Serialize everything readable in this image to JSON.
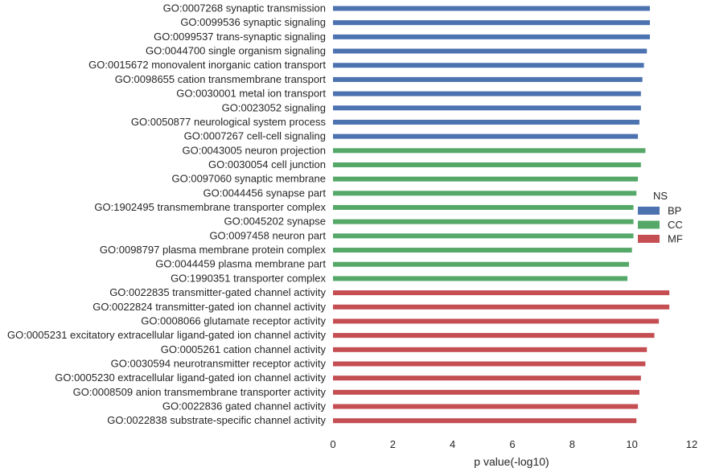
{
  "chart_data": {
    "type": "bar",
    "orientation": "horizontal",
    "xlabel": "p value(-log10)",
    "ylabel": "",
    "xlim": [
      0,
      12
    ],
    "xticks": [
      "0",
      "2",
      "4",
      "6",
      "8",
      "10",
      "12"
    ],
    "grid": false,
    "legend": {
      "title": "NS",
      "placement": "right",
      "entries": [
        {
          "name": "BP",
          "color": "#4c72b0"
        },
        {
          "name": "CC",
          "color": "#55a868"
        },
        {
          "name": "MF",
          "color": "#c44e52"
        }
      ]
    },
    "categories": [
      {
        "label": "GO:0007268 synaptic transmission",
        "value": 10.6,
        "ns": "BP"
      },
      {
        "label": "GO:0099536 synaptic signaling",
        "value": 10.6,
        "ns": "BP"
      },
      {
        "label": "GO:0099537 trans-synaptic signaling",
        "value": 10.6,
        "ns": "BP"
      },
      {
        "label": "GO:0044700 single organism signaling",
        "value": 10.5,
        "ns": "BP"
      },
      {
        "label": "GO:0015672 monovalent inorganic cation transport",
        "value": 10.4,
        "ns": "BP"
      },
      {
        "label": "GO:0098655 cation transmembrane transport",
        "value": 10.35,
        "ns": "BP"
      },
      {
        "label": "GO:0030001 metal ion transport",
        "value": 10.3,
        "ns": "BP"
      },
      {
        "label": "GO:0023052 signaling",
        "value": 10.3,
        "ns": "BP"
      },
      {
        "label": "GO:0050877 neurological system process",
        "value": 10.25,
        "ns": "BP"
      },
      {
        "label": "GO:0007267 cell-cell signaling",
        "value": 10.2,
        "ns": "BP"
      },
      {
        "label": "GO:0043005 neuron projection",
        "value": 10.45,
        "ns": "CC"
      },
      {
        "label": "GO:0030054 cell junction",
        "value": 10.3,
        "ns": "CC"
      },
      {
        "label": "GO:0097060 synaptic membrane",
        "value": 10.2,
        "ns": "CC"
      },
      {
        "label": "GO:0044456 synapse part",
        "value": 10.15,
        "ns": "CC"
      },
      {
        "label": "GO:1902495 transmembrane transporter complex",
        "value": 10.05,
        "ns": "CC"
      },
      {
        "label": "GO:0045202 synapse",
        "value": 10.05,
        "ns": "CC"
      },
      {
        "label": "GO:0097458 neuron part",
        "value": 10.05,
        "ns": "CC"
      },
      {
        "label": "GO:0098797 plasma membrane protein complex",
        "value": 10.0,
        "ns": "CC"
      },
      {
        "label": "GO:0044459 plasma membrane part",
        "value": 9.9,
        "ns": "CC"
      },
      {
        "label": "GO:1990351 transporter complex",
        "value": 9.85,
        "ns": "CC"
      },
      {
        "label": "GO:0022835 transmitter-gated channel activity",
        "value": 11.25,
        "ns": "MF"
      },
      {
        "label": "GO:0022824 transmitter-gated ion channel activity",
        "value": 11.25,
        "ns": "MF"
      },
      {
        "label": "GO:0008066 glutamate receptor activity",
        "value": 10.9,
        "ns": "MF"
      },
      {
        "label": "GO:0005231 excitatory extracellular ligand-gated ion channel activity",
        "value": 10.75,
        "ns": "MF"
      },
      {
        "label": "GO:0005261 cation channel activity",
        "value": 10.5,
        "ns": "MF"
      },
      {
        "label": "GO:0030594 neurotransmitter receptor activity",
        "value": 10.45,
        "ns": "MF"
      },
      {
        "label": "GO:0005230 extracellular ligand-gated ion channel activity",
        "value": 10.3,
        "ns": "MF"
      },
      {
        "label": "GO:0008509 anion transmembrane transporter activity",
        "value": 10.25,
        "ns": "MF"
      },
      {
        "label": "GO:0022836 gated channel activity",
        "value": 10.2,
        "ns": "MF"
      },
      {
        "label": "GO:0022838 substrate-specific channel activity",
        "value": 10.15,
        "ns": "MF"
      }
    ]
  }
}
